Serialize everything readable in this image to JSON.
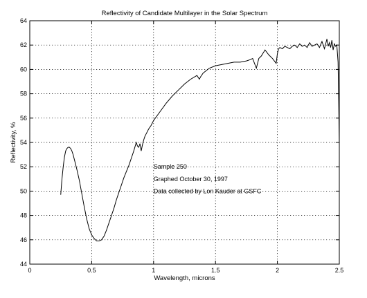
{
  "chart_data": {
    "type": "line",
    "title": "Reflectivity of Candidate Multilayer in the Solar Spectrum",
    "xlabel": "Wavelength, microns",
    "ylabel": "Reflectivity, %",
    "xlim": [
      0,
      2.5
    ],
    "ylim": [
      44,
      64
    ],
    "xticks": [
      0,
      0.5,
      1,
      1.5,
      2,
      2.5
    ],
    "xtick_labels": [
      "0",
      "0.5",
      "1",
      "1.5",
      "2",
      "2.5"
    ],
    "yticks": [
      44,
      46,
      48,
      50,
      52,
      54,
      56,
      58,
      60,
      62,
      64
    ],
    "ytick_labels": [
      "44",
      "46",
      "48",
      "50",
      "52",
      "54",
      "56",
      "58",
      "60",
      "62",
      "64"
    ],
    "grid": true,
    "annotations": [
      "Sample 250",
      "Graphed October 30, 1997",
      "Data collected by Lon Kauder at GSFC"
    ],
    "series": [
      {
        "color": "#000000",
        "x": [
          0.25,
          0.26,
          0.27,
          0.28,
          0.29,
          0.3,
          0.31,
          0.32,
          0.33,
          0.34,
          0.35,
          0.36,
          0.37,
          0.38,
          0.4,
          0.42,
          0.44,
          0.46,
          0.48,
          0.5,
          0.52,
          0.54,
          0.56,
          0.58,
          0.6,
          0.62,
          0.64,
          0.66,
          0.68,
          0.7,
          0.72,
          0.74,
          0.76,
          0.78,
          0.8,
          0.82,
          0.84,
          0.86,
          0.87,
          0.88,
          0.89,
          0.9,
          0.91,
          0.92,
          0.93,
          0.94,
          0.96,
          0.98,
          1.0,
          1.05,
          1.1,
          1.15,
          1.2,
          1.25,
          1.3,
          1.35,
          1.37,
          1.38,
          1.4,
          1.45,
          1.5,
          1.55,
          1.6,
          1.65,
          1.7,
          1.75,
          1.78,
          1.8,
          1.83,
          1.85,
          1.87,
          1.9,
          1.93,
          1.96,
          1.99,
          2.0,
          2.01,
          2.02,
          2.04,
          2.06,
          2.08,
          2.1,
          2.12,
          2.14,
          2.16,
          2.18,
          2.2,
          2.22,
          2.24,
          2.26,
          2.28,
          2.3,
          2.32,
          2.34,
          2.36,
          2.38,
          2.4,
          2.41,
          2.42,
          2.43,
          2.44,
          2.45,
          2.46,
          2.47,
          2.48,
          2.485,
          2.49,
          2.495,
          2.5
        ],
        "y": [
          49.7,
          51.0,
          52.0,
          52.8,
          53.3,
          53.5,
          53.6,
          53.6,
          53.5,
          53.3,
          53.0,
          52.6,
          52.2,
          51.8,
          50.9,
          49.8,
          48.7,
          47.7,
          46.9,
          46.4,
          46.1,
          45.9,
          45.9,
          46.0,
          46.3,
          46.8,
          47.4,
          48.0,
          48.6,
          49.3,
          49.9,
          50.5,
          51.1,
          51.6,
          52.1,
          52.7,
          53.3,
          54.0,
          53.7,
          53.6,
          53.9,
          53.3,
          53.8,
          54.2,
          54.5,
          54.7,
          55.1,
          55.4,
          55.8,
          56.5,
          57.2,
          57.8,
          58.3,
          58.8,
          59.2,
          59.5,
          59.2,
          59.4,
          59.7,
          60.1,
          60.3,
          60.4,
          60.5,
          60.6,
          60.6,
          60.7,
          60.8,
          60.9,
          60.1,
          60.9,
          61.1,
          61.6,
          61.2,
          60.9,
          60.5,
          61.3,
          61.7,
          61.8,
          61.7,
          61.9,
          61.8,
          61.7,
          61.9,
          62.0,
          61.8,
          62.1,
          61.9,
          62.0,
          61.8,
          62.2,
          61.9,
          62.0,
          62.1,
          61.8,
          62.3,
          61.7,
          62.5,
          61.9,
          62.2,
          61.8,
          62.4,
          61.6,
          62.1,
          61.9,
          62.0,
          61.3,
          60.6,
          57.5,
          53.8
        ]
      }
    ]
  }
}
